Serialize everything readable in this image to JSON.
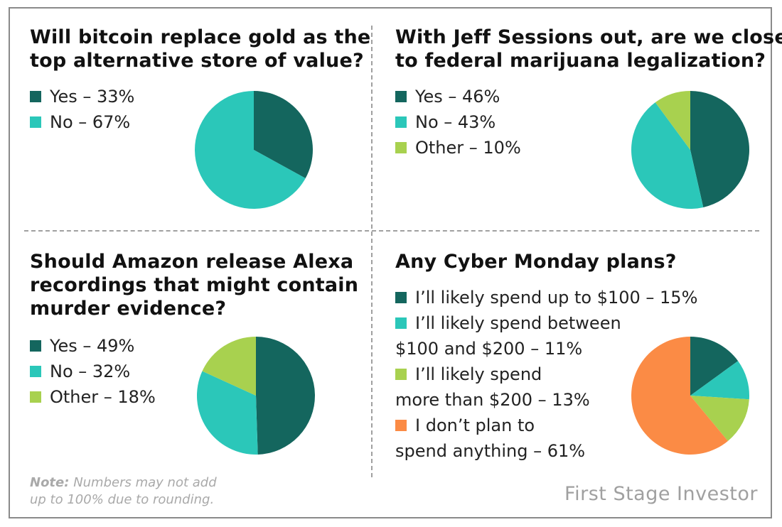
{
  "brand": "First Stage Investor",
  "note": {
    "label": "Note:",
    "line1": "Numbers may not add",
    "line2": "up to 100% due to rounding."
  },
  "colors": {
    "yes": "#14665e",
    "no": "#2bc7b9",
    "other": "#a8d14f",
    "none": "#fb8b45"
  },
  "chart_data": [
    {
      "type": "pie",
      "title": "Will bitcoin replace gold as the top alternative store of value?",
      "title_lines": [
        "Will bitcoin replace gold as the",
        "top alternative store of value?"
      ],
      "legend": [
        "Yes – 33%",
        "No – 67%"
      ],
      "categories": [
        "Yes",
        "No"
      ],
      "values": [
        33,
        67
      ],
      "colors": [
        "#14665e",
        "#2bc7b9"
      ]
    },
    {
      "type": "pie",
      "title": "With Jeff Sessions out, are we closer to federal marijuana legalization?",
      "title_lines": [
        "With Jeff Sessions out, are we closer",
        "to federal marijuana legalization?"
      ],
      "legend": [
        "Yes – 46%",
        "No – 43%",
        "Other – 10%"
      ],
      "categories": [
        "Yes",
        "No",
        "Other"
      ],
      "values": [
        46,
        43,
        10
      ],
      "colors": [
        "#14665e",
        "#2bc7b9",
        "#a8d14f"
      ]
    },
    {
      "type": "pie",
      "title": "Should Amazon release Alexa recordings that might contain murder evidence?",
      "title_lines": [
        "Should Amazon release Alexa",
        "recordings that might contain",
        "murder evidence?"
      ],
      "legend": [
        "Yes – 49%",
        "No – 32%",
        "Other – 18%"
      ],
      "categories": [
        "Yes",
        "No",
        "Other"
      ],
      "values": [
        49,
        32,
        18
      ],
      "colors": [
        "#14665e",
        "#2bc7b9",
        "#a8d14f"
      ]
    },
    {
      "type": "pie",
      "title": "Any Cyber Monday plans?",
      "title_lines": [
        "Any Cyber Monday plans?"
      ],
      "legend": [
        [
          "I’ll likely spend up to $100 – 15%"
        ],
        [
          "I’ll likely spend between",
          "$100 and $200 – 11%"
        ],
        [
          "I’ll likely spend",
          "more than $200 – 13%"
        ],
        [
          "I don’t plan to",
          "spend anything – 61%"
        ]
      ],
      "categories": [
        "I’ll likely spend up to $100",
        "I’ll likely spend between $100 and $200",
        "I’ll likely spend more than $200",
        "I don’t plan to spend anything"
      ],
      "values": [
        15,
        11,
        13,
        61
      ],
      "colors": [
        "#14665e",
        "#2bc7b9",
        "#a8d14f",
        "#fb8b45"
      ]
    }
  ]
}
